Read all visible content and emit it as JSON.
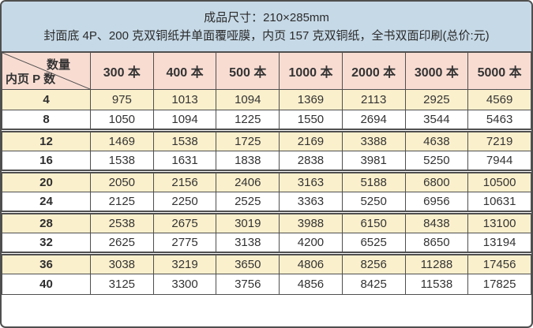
{
  "header": {
    "line1": "成品尺寸：210×285mm",
    "line2": "封面底 4P、200 克双铜纸并单面覆哑膜，内页 157 克双铜纸，全书双面印刷(总价:元)"
  },
  "table": {
    "corner": {
      "top_right": "数量",
      "bottom_left": "内页 P 数"
    },
    "columns": [
      "300 本",
      "400 本",
      "500 本",
      "1000 本",
      "2000 本",
      "3000 本",
      "5000 本"
    ],
    "rows": [
      {
        "pages": "4",
        "values": [
          "975",
          "1013",
          "1094",
          "1369",
          "2113",
          "2925",
          "4569"
        ]
      },
      {
        "pages": "8",
        "values": [
          "1050",
          "1094",
          "1225",
          "1550",
          "2694",
          "3544",
          "5463"
        ]
      },
      {
        "pages": "12",
        "values": [
          "1469",
          "1538",
          "1725",
          "2169",
          "3388",
          "4638",
          "7219"
        ]
      },
      {
        "pages": "16",
        "values": [
          "1538",
          "1631",
          "1838",
          "2838",
          "3981",
          "5250",
          "7944"
        ]
      },
      {
        "pages": "20",
        "values": [
          "2050",
          "2156",
          "2406",
          "3163",
          "5188",
          "6800",
          "10500"
        ]
      },
      {
        "pages": "24",
        "values": [
          "2125",
          "2250",
          "2525",
          "3363",
          "5250",
          "6956",
          "10631"
        ]
      },
      {
        "pages": "28",
        "values": [
          "2538",
          "2675",
          "3019",
          "3988",
          "6150",
          "8438",
          "13100"
        ]
      },
      {
        "pages": "32",
        "values": [
          "2625",
          "2775",
          "3138",
          "4200",
          "6525",
          "8650",
          "13194"
        ]
      },
      {
        "pages": "36",
        "values": [
          "3038",
          "3219",
          "3650",
          "4806",
          "8256",
          "11288",
          "17456"
        ]
      },
      {
        "pages": "40",
        "values": [
          "3125",
          "3300",
          "3756",
          "4856",
          "8425",
          "11538",
          "17825"
        ]
      }
    ]
  },
  "colors": {
    "header_bg": "#c6d9e7",
    "table_head_bg": "#f8dcd2",
    "row_alt_bg": "#fbf0cc",
    "border": "#4f4f4f"
  }
}
